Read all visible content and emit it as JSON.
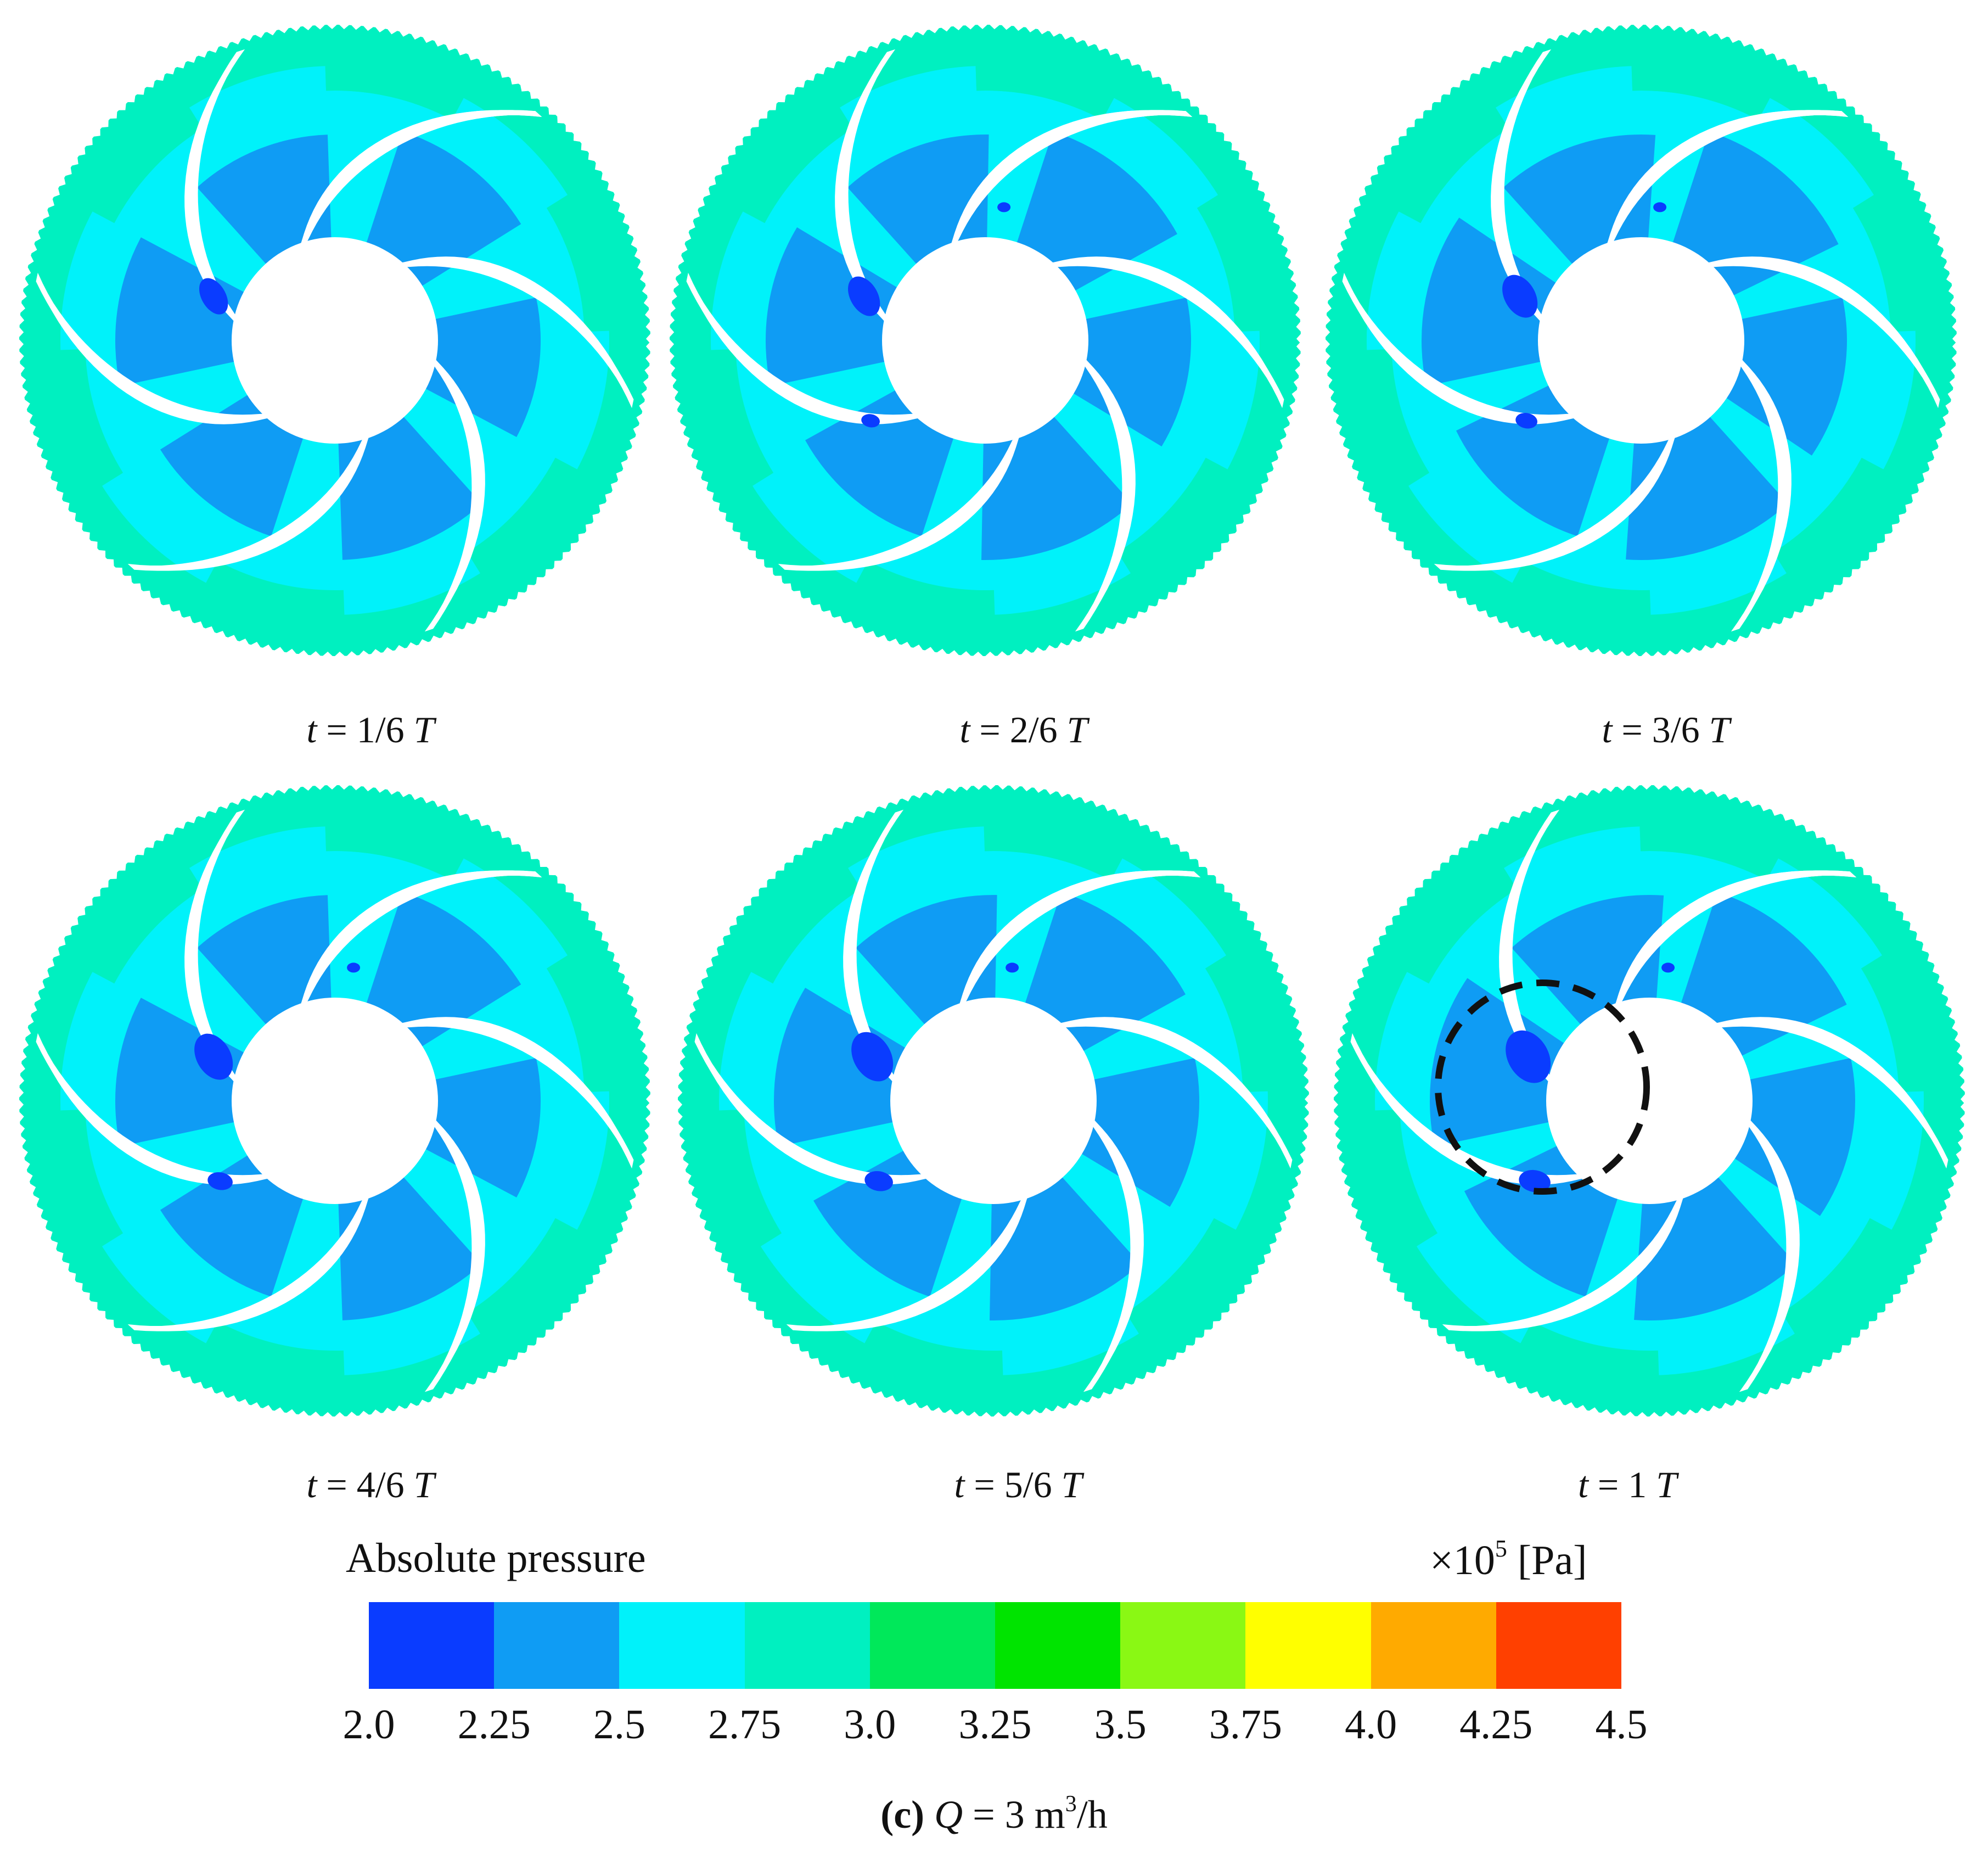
{
  "panels": [
    {
      "caption": "t = 1/6 T",
      "variant": 0,
      "highlight": false
    },
    {
      "caption": "t = 2/6 T",
      "variant": 1,
      "highlight": false
    },
    {
      "caption": "t = 3/6 T",
      "variant": 2,
      "highlight": false
    },
    {
      "caption": "t = 4/6 T",
      "variant": 3,
      "highlight": false
    },
    {
      "caption": "t = 5/6 T",
      "variant": 4,
      "highlight": true
    },
    {
      "caption": "t = 1 T",
      "variant": 5,
      "highlight": true
    }
  ],
  "captions_parts": [
    {
      "var": "t",
      "eq": " = 1/6 ",
      "unit": "T"
    },
    {
      "var": "t",
      "eq": " = 2/6 ",
      "unit": "T"
    },
    {
      "var": "t",
      "eq": " = 3/6 ",
      "unit": "T"
    },
    {
      "var": "t",
      "eq": " = 4/6 ",
      "unit": "T"
    },
    {
      "var": "t",
      "eq": " = 5/6 ",
      "unit": "T"
    },
    {
      "var": "t",
      "eq": " = 1 ",
      "unit": "T"
    }
  ],
  "colors": {
    "p200": "#0a3cff",
    "p225": "#0f9cf4",
    "p250": "#00f2fa",
    "p275": "#00f0c0",
    "blade": "#ffffff"
  },
  "legend": {
    "title": "Absolute pressure",
    "unit_prefix": "×10",
    "unit_exp": "5",
    "unit_suffix": " [Pa]",
    "colors": [
      "#0a3cff",
      "#0f9cf4",
      "#00f2fa",
      "#00f0c0",
      "#00e85a",
      "#00e400",
      "#8af814",
      "#ffff00",
      "#ffaa00",
      "#ff4000"
    ],
    "ticks": [
      "2.0",
      "2.25",
      "2.5",
      "2.75",
      "3.0",
      "3.25",
      "3.5",
      "3.75",
      "4.0",
      "4.25",
      "4.5"
    ]
  },
  "figure_caption": {
    "label": "(c)",
    "var": "Q",
    "eq": " = 3 m",
    "exp": "3",
    "suffix": "/h"
  }
}
